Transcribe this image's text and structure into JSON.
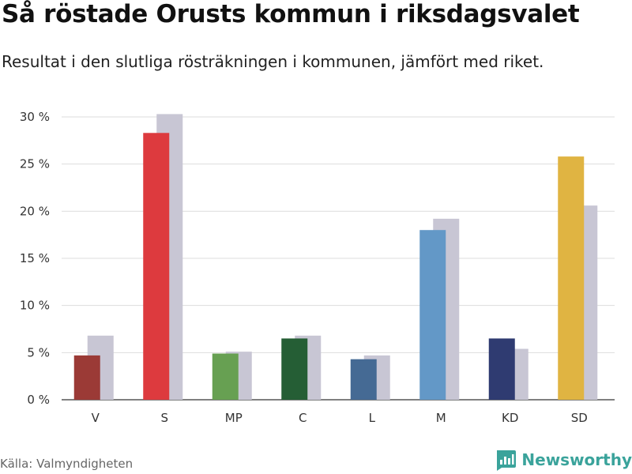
{
  "header": {
    "title": "Så röstade Orusts kommun i riksdagsvalet",
    "subtitle": "Resultat i den slutliga rösträkningen i kommunen, jämfört med riket."
  },
  "footer": {
    "source": "Källa: Valmyndigheten",
    "brand": "Newsworthy",
    "brand_color": "#3aa39b"
  },
  "chart_data": {
    "type": "bar",
    "categories": [
      "V",
      "S",
      "MP",
      "C",
      "L",
      "M",
      "KD",
      "SD"
    ],
    "series": [
      {
        "values": [
          4.7,
          28.3,
          4.9,
          6.5,
          4.3,
          18.0,
          6.5,
          25.8
        ],
        "colors": [
          "#9b3a36",
          "#dd3a3e",
          "#67a052",
          "#255e35",
          "#456a94",
          "#6398c7",
          "#2f3b71",
          "#e0b442"
        ]
      },
      {
        "values": [
          6.8,
          30.3,
          5.1,
          6.8,
          4.7,
          19.2,
          5.4,
          20.6
        ],
        "color": "#c8c6d4"
      }
    ],
    "yticks": [
      0,
      5,
      10,
      15,
      20,
      25,
      30
    ],
    "ytick_labels": [
      "0 %",
      "5 %",
      "10 %",
      "15 %",
      "20 %",
      "25 %",
      "30 %"
    ],
    "ylim": [
      0,
      30
    ],
    "grid": true
  }
}
